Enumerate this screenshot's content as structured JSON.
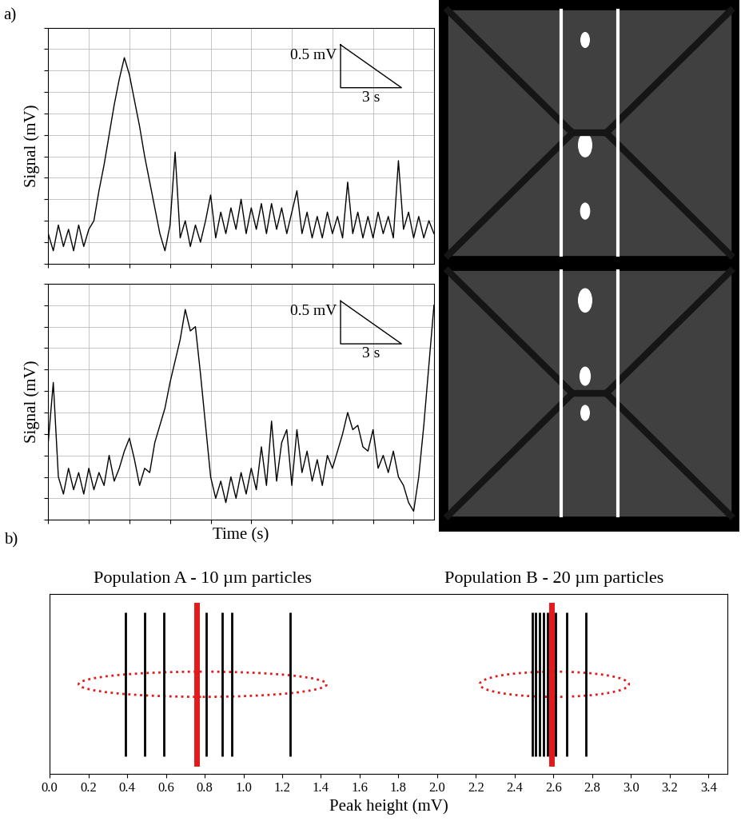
{
  "chart_data": [
    {
      "type": "line",
      "panel_label": "a)",
      "ylabel": "Signal (mV)",
      "color": "#000000",
      "x": [
        0,
        0.25,
        0.5,
        0.75,
        1,
        1.25,
        1.5,
        1.75,
        2,
        2.25,
        2.5,
        2.75,
        3,
        3.25,
        3.5,
        3.75,
        4,
        4.25,
        4.5,
        4.75,
        5,
        5.25,
        5.5,
        5.75,
        6,
        6.25,
        6.5,
        6.75,
        7,
        7.25,
        7.5,
        7.75,
        8,
        8.25,
        8.5,
        8.75,
        9,
        9.25,
        9.5,
        9.75,
        10,
        10.25,
        10.5,
        10.75,
        11,
        11.25,
        11.5,
        11.75,
        12,
        12.25,
        12.5,
        12.75,
        13,
        13.25,
        13.5,
        13.75,
        14,
        14.25,
        14.5,
        14.75,
        15,
        15.25,
        15.5,
        15.75,
        16,
        16.25,
        16.5,
        16.75,
        17,
        17.25,
        17.5,
        17.75,
        18,
        18.25,
        18.5,
        18.75,
        19
      ],
      "values": [
        0.35,
        0.15,
        0.45,
        0.2,
        0.4,
        0.15,
        0.45,
        0.2,
        0.4,
        0.5,
        0.85,
        1.15,
        1.5,
        1.85,
        2.15,
        2.4,
        2.2,
        1.9,
        1.6,
        1.25,
        0.95,
        0.65,
        0.35,
        0.15,
        0.45,
        1.3,
        0.3,
        0.5,
        0.2,
        0.45,
        0.25,
        0.5,
        0.8,
        0.3,
        0.6,
        0.35,
        0.65,
        0.4,
        0.75,
        0.35,
        0.65,
        0.4,
        0.7,
        0.35,
        0.7,
        0.4,
        0.65,
        0.35,
        0.6,
        0.85,
        0.35,
        0.6,
        0.3,
        0.55,
        0.3,
        0.6,
        0.35,
        0.55,
        0.3,
        0.95,
        0.35,
        0.6,
        0.3,
        0.55,
        0.3,
        0.6,
        0.35,
        0.55,
        0.3,
        1.2,
        0.4,
        0.6,
        0.3,
        0.55,
        0.3,
        0.5,
        0.35
      ],
      "xlim": [
        0,
        19
      ],
      "ylim": [
        0,
        2.75
      ],
      "xticks": [
        0,
        2,
        4,
        6,
        8,
        10,
        12,
        14,
        16,
        18
      ],
      "yticks": [
        0,
        0.25,
        0.5,
        0.75,
        1,
        1.25,
        1.5,
        1.75,
        2,
        2.25,
        2.5,
        2.75
      ],
      "grid": true,
      "tick_labels": false,
      "scale_bar": {
        "x": 3,
        "y": 0.5,
        "x_label": "3 s",
        "y_label": "0.5 mV"
      }
    },
    {
      "type": "line",
      "ylabel": "Signal (mV)",
      "xlabel": "Time (s)",
      "color": "#000000",
      "x": [
        0,
        0.25,
        0.5,
        0.75,
        1,
        1.25,
        1.5,
        1.75,
        2,
        2.25,
        2.5,
        2.75,
        3,
        3.25,
        3.5,
        3.75,
        4,
        4.25,
        4.5,
        4.75,
        5,
        5.25,
        5.5,
        5.75,
        6,
        6.25,
        6.5,
        6.75,
        7,
        7.25,
        7.5,
        7.75,
        8,
        8.25,
        8.5,
        8.75,
        9,
        9.25,
        9.5,
        9.75,
        10,
        10.25,
        10.5,
        10.75,
        11,
        11.25,
        11.5,
        11.75,
        12,
        12.25,
        12.5,
        12.75,
        13,
        13.25,
        13.5,
        13.75,
        14,
        14.25,
        14.5,
        14.75,
        15,
        15.25,
        15.5,
        15.75,
        16,
        16.25,
        16.5,
        16.75,
        17,
        17.25,
        17.5,
        17.75,
        18,
        18.25,
        18.5,
        18.75,
        19
      ],
      "values": [
        0.9,
        1.6,
        0.5,
        0.3,
        0.6,
        0.35,
        0.55,
        0.3,
        0.6,
        0.35,
        0.55,
        0.4,
        0.75,
        0.45,
        0.6,
        0.8,
        0.95,
        0.7,
        0.4,
        0.6,
        0.55,
        0.9,
        1.1,
        1.3,
        1.6,
        1.85,
        2.1,
        2.45,
        2.2,
        2.25,
        1.7,
        1.1,
        0.5,
        0.25,
        0.45,
        0.2,
        0.5,
        0.25,
        0.55,
        0.3,
        0.6,
        0.35,
        0.85,
        0.4,
        1.15,
        0.45,
        0.9,
        1.05,
        0.4,
        1.05,
        0.55,
        0.8,
        0.45,
        0.7,
        0.4,
        0.75,
        0.6,
        0.8,
        1.0,
        1.25,
        1.05,
        1.1,
        0.85,
        0.8,
        1.05,
        0.6,
        0.75,
        0.55,
        0.8,
        0.5,
        0.4,
        0.2,
        0.1,
        0.5,
        1.1,
        1.8,
        2.5
      ],
      "xlim": [
        0,
        19
      ],
      "ylim": [
        0,
        2.75
      ],
      "xticks": [
        0,
        2,
        4,
        6,
        8,
        10,
        12,
        14,
        16,
        18
      ],
      "yticks": [
        0,
        0.25,
        0.5,
        0.75,
        1,
        1.25,
        1.5,
        1.75,
        2,
        2.25,
        2.5,
        2.75
      ],
      "grid": true,
      "tick_labels": false,
      "scale_bar": {
        "x": 3,
        "y": 0.5,
        "x_label": "3 s",
        "y_label": "0.5 mV"
      }
    },
    {
      "type": "event",
      "panel_label": "b)",
      "xlabel": "Peak height (mV)",
      "xlim": [
        0,
        3.5
      ],
      "xticks": [
        {
          "value": 0,
          "label": "0.0"
        },
        {
          "value": 0.2,
          "label": "0.2"
        },
        {
          "value": 0.4,
          "label": "0.4"
        },
        {
          "value": 0.6,
          "label": "0.6"
        },
        {
          "value": 0.8,
          "label": "0.8"
        },
        {
          "value": 1.0,
          "label": "1.0"
        },
        {
          "value": 1.2,
          "label": "1.2"
        },
        {
          "value": 1.4,
          "label": "1.4"
        },
        {
          "value": 1.6,
          "label": "1.6"
        },
        {
          "value": 1.8,
          "label": "1.8"
        },
        {
          "value": 2.0,
          "label": "2.0"
        },
        {
          "value": 2.2,
          "label": "2.2"
        },
        {
          "value": 2.4,
          "label": "2.4"
        },
        {
          "value": 2.6,
          "label": "2.6"
        },
        {
          "value": 2.8,
          "label": "2.8"
        },
        {
          "value": 3.0,
          "label": "3.0"
        },
        {
          "value": 3.2,
          "label": "3.2"
        },
        {
          "value": 3.4,
          "label": "3.4"
        }
      ],
      "tick_labels": "x",
      "color": "#000000",
      "groups": [
        {
          "name": "Population A - 10 µm particles",
          "peaks": [
            0.39,
            0.49,
            0.59,
            0.81,
            0.89,
            0.94,
            1.24
          ],
          "mean": 0.76,
          "spread": [
            0.15,
            1.43
          ],
          "mean_color": "#e31a1c"
        },
        {
          "name": "Population B - 20 µm particles",
          "peaks": [
            2.49,
            2.51,
            2.53,
            2.55,
            2.57,
            2.61,
            2.67,
            2.77
          ],
          "mean": 2.59,
          "spread": [
            2.22,
            2.99
          ],
          "mean_color": "#e31a1c"
        }
      ]
    }
  ]
}
